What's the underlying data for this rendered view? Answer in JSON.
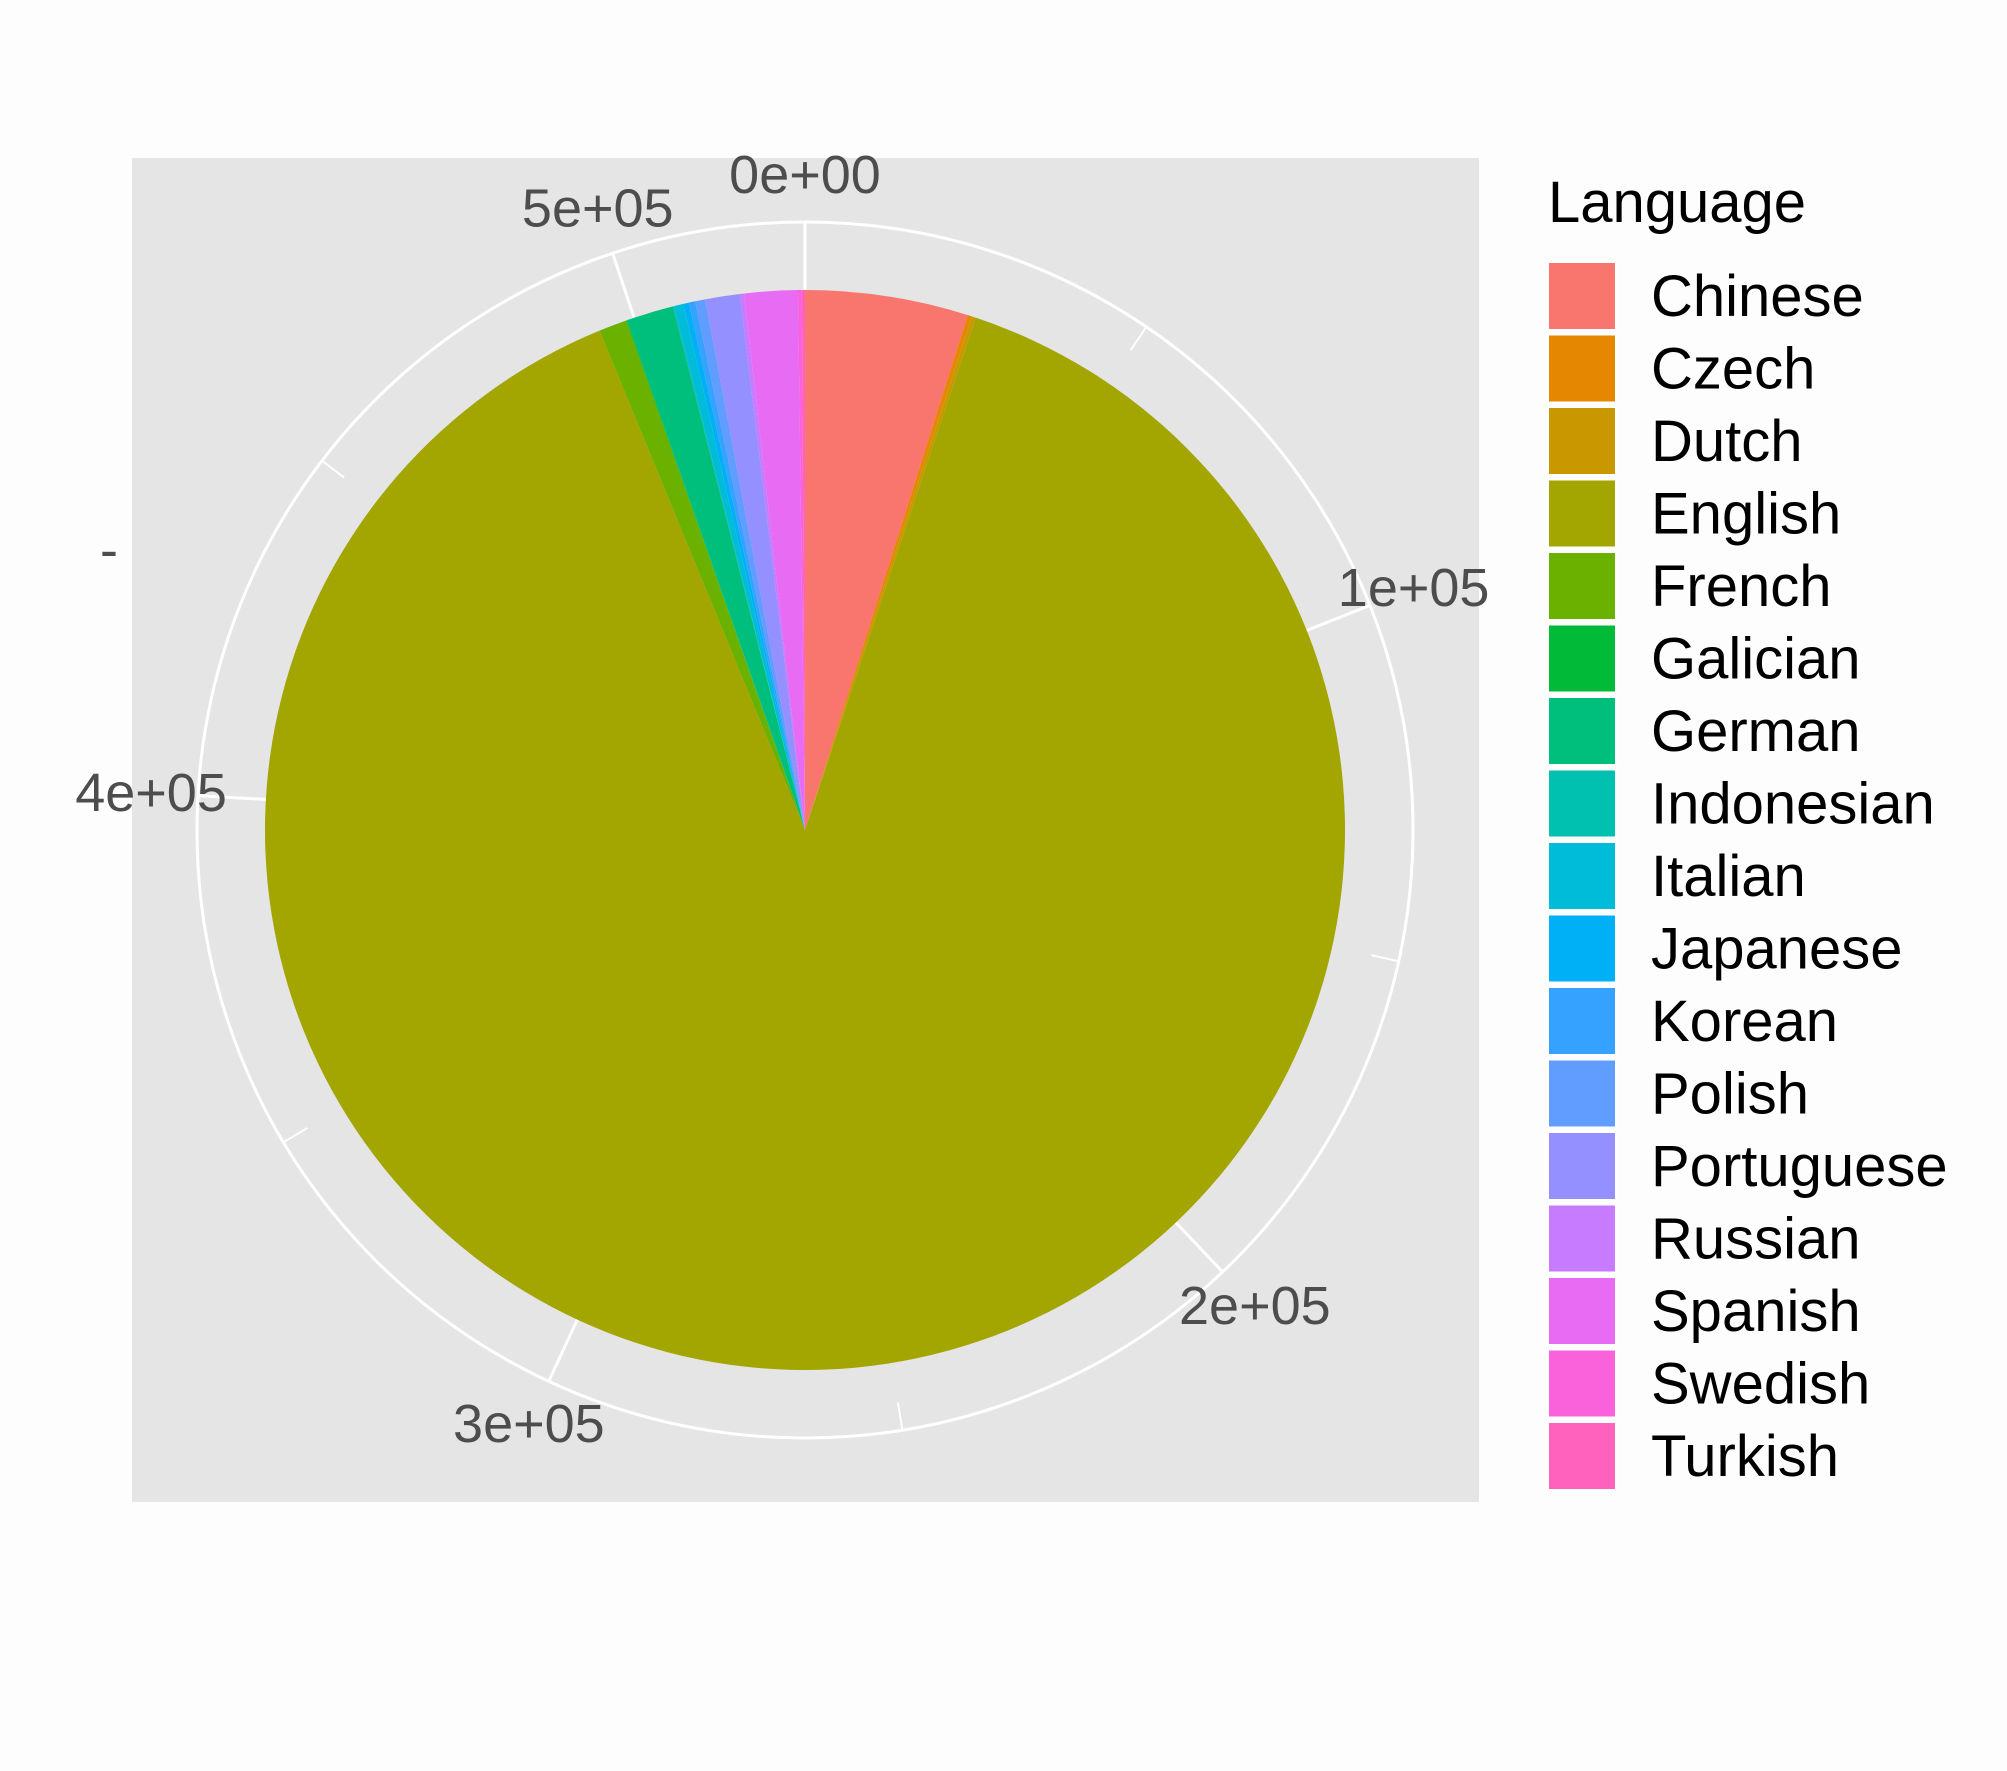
{
  "chart_data": {
    "type": "pie",
    "legend": {
      "title": "Language",
      "position": "right"
    },
    "theta_axis": {
      "ticks": [
        {
          "value": 0,
          "label": "0e+00"
        },
        {
          "value": 100000,
          "label": "1e+05"
        },
        {
          "value": 200000,
          "label": "2e+05"
        },
        {
          "value": 300000,
          "label": "3e+05"
        },
        {
          "value": 400000,
          "label": "4e+05"
        },
        {
          "value": 500000,
          "label": "5e+05"
        }
      ],
      "range": [
        0,
        527000
      ]
    },
    "y_axis_tick_label": "-",
    "slices": [
      {
        "name": "Chinese",
        "value": 26000,
        "color": "#F8766D"
      },
      {
        "name": "Czech",
        "value": 700,
        "color": "#E58700"
      },
      {
        "name": "Dutch",
        "value": 600,
        "color": "#C99800"
      },
      {
        "name": "English",
        "value": 473000,
        "color": "#A3A500"
      },
      {
        "name": "French",
        "value": 4500,
        "color": "#6BB100"
      },
      {
        "name": "Galician",
        "value": 150,
        "color": "#00BA38"
      },
      {
        "name": "German",
        "value": 7500,
        "color": "#00BF7D"
      },
      {
        "name": "Indonesian",
        "value": 200,
        "color": "#00C0AF"
      },
      {
        "name": "Italian",
        "value": 1500,
        "color": "#00BCD8"
      },
      {
        "name": "Japanese",
        "value": 900,
        "color": "#00B0F6"
      },
      {
        "name": "Korean",
        "value": 1000,
        "color": "#35A2FF"
      },
      {
        "name": "Polish",
        "value": 1600,
        "color": "#619CFF"
      },
      {
        "name": "Portuguese",
        "value": 5500,
        "color": "#9590FF"
      },
      {
        "name": "Russian",
        "value": 700,
        "color": "#C77CFF"
      },
      {
        "name": "Spanish",
        "value": 8500,
        "color": "#E76BF3"
      },
      {
        "name": "Swedish",
        "value": 600,
        "color": "#FA62DB"
      },
      {
        "name": "Turkish",
        "value": 500,
        "color": "#FF62BC"
      }
    ],
    "grid": true
  }
}
